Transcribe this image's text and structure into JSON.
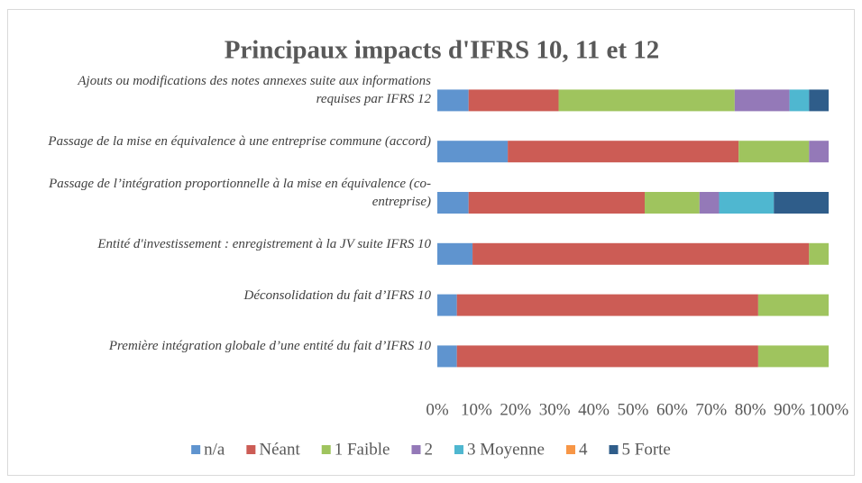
{
  "chart_data": {
    "type": "bar",
    "orientation": "horizontal",
    "stacked": true,
    "title": "Principaux impacts d'IFRS 10, 11 et 12",
    "categories": [
      "Ajouts ou modifications des notes annexes suite aux informations requises par IFRS 12",
      "Passage de la mise en équivalence à une entreprise commune (accord)",
      "Passage de l’intégration proportionnelle à la mise en équivalence (co-entreprise)",
      "Entité d'investissement : enregistrement à la JV suite IFRS 10",
      "Déconsolidation du fait d’IFRS 10",
      "Première intégration globale d’une entité du fait d’IFRS 10"
    ],
    "series": [
      {
        "name": "n/a",
        "color": "#5f94cf",
        "values": [
          8,
          18,
          8,
          9,
          5,
          5
        ]
      },
      {
        "name": "Néant",
        "color": "#cc5c55",
        "values": [
          23,
          59,
          45,
          86,
          77,
          77
        ]
      },
      {
        "name": "1 Faible",
        "color": "#9fc45e",
        "values": [
          45,
          18,
          14,
          5,
          18,
          18
        ]
      },
      {
        "name": "2",
        "color": "#9479b8",
        "values": [
          14,
          5,
          5,
          0,
          0,
          0
        ]
      },
      {
        "name": "3 Moyenne",
        "color": "#4fb7d0",
        "values": [
          5,
          0,
          14,
          0,
          0,
          0
        ]
      },
      {
        "name": "4",
        "color": "#f79646",
        "values": [
          0,
          0,
          0,
          0,
          0,
          0
        ]
      },
      {
        "name": "5 Forte",
        "color": "#2f5d8a",
        "values": [
          5,
          0,
          14,
          0,
          0,
          0
        ]
      }
    ],
    "xlim": [
      0,
      100
    ],
    "xticks": [
      {
        "value": 0,
        "label": "0%"
      },
      {
        "value": 10,
        "label": "10%"
      },
      {
        "value": 20,
        "label": "20%"
      },
      {
        "value": 30,
        "label": "30%"
      },
      {
        "value": 40,
        "label": "40%"
      },
      {
        "value": 50,
        "label": "50%"
      },
      {
        "value": 60,
        "label": "60%"
      },
      {
        "value": 70,
        "label": "70%"
      },
      {
        "value": 80,
        "label": "80%"
      },
      {
        "value": 90,
        "label": "90%"
      },
      {
        "value": 100,
        "label": "100%"
      }
    ],
    "legend": "bottom"
  }
}
